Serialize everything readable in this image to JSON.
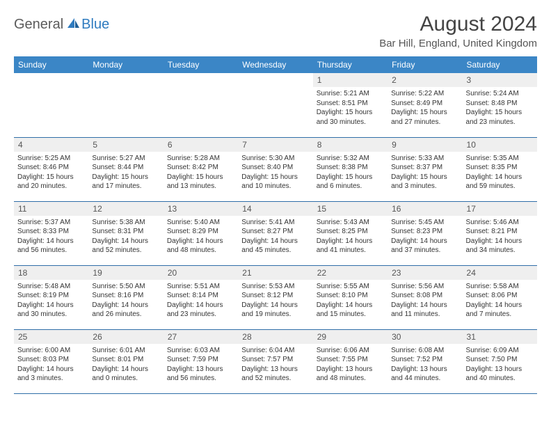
{
  "brand": {
    "word1": "General",
    "word2": "Blue"
  },
  "title": "August 2024",
  "location": "Bar Hill, England, United Kingdom",
  "colors": {
    "header_bg": "#3b86c6",
    "header_text": "#ffffff",
    "daynum_bg": "#efefef",
    "row_border": "#2f6ea8",
    "logo_gray": "#5b5b5b",
    "logo_blue": "#2f7bbf"
  },
  "weekdays": [
    "Sunday",
    "Monday",
    "Tuesday",
    "Wednesday",
    "Thursday",
    "Friday",
    "Saturday"
  ],
  "weeks": [
    [
      null,
      null,
      null,
      null,
      {
        "n": "1",
        "sr": "5:21 AM",
        "ss": "8:51 PM",
        "dl": "15 hours and 30 minutes."
      },
      {
        "n": "2",
        "sr": "5:22 AM",
        "ss": "8:49 PM",
        "dl": "15 hours and 27 minutes."
      },
      {
        "n": "3",
        "sr": "5:24 AM",
        "ss": "8:48 PM",
        "dl": "15 hours and 23 minutes."
      }
    ],
    [
      {
        "n": "4",
        "sr": "5:25 AM",
        "ss": "8:46 PM",
        "dl": "15 hours and 20 minutes."
      },
      {
        "n": "5",
        "sr": "5:27 AM",
        "ss": "8:44 PM",
        "dl": "15 hours and 17 minutes."
      },
      {
        "n": "6",
        "sr": "5:28 AM",
        "ss": "8:42 PM",
        "dl": "15 hours and 13 minutes."
      },
      {
        "n": "7",
        "sr": "5:30 AM",
        "ss": "8:40 PM",
        "dl": "15 hours and 10 minutes."
      },
      {
        "n": "8",
        "sr": "5:32 AM",
        "ss": "8:38 PM",
        "dl": "15 hours and 6 minutes."
      },
      {
        "n": "9",
        "sr": "5:33 AM",
        "ss": "8:37 PM",
        "dl": "15 hours and 3 minutes."
      },
      {
        "n": "10",
        "sr": "5:35 AM",
        "ss": "8:35 PM",
        "dl": "14 hours and 59 minutes."
      }
    ],
    [
      {
        "n": "11",
        "sr": "5:37 AM",
        "ss": "8:33 PM",
        "dl": "14 hours and 56 minutes."
      },
      {
        "n": "12",
        "sr": "5:38 AM",
        "ss": "8:31 PM",
        "dl": "14 hours and 52 minutes."
      },
      {
        "n": "13",
        "sr": "5:40 AM",
        "ss": "8:29 PM",
        "dl": "14 hours and 48 minutes."
      },
      {
        "n": "14",
        "sr": "5:41 AM",
        "ss": "8:27 PM",
        "dl": "14 hours and 45 minutes."
      },
      {
        "n": "15",
        "sr": "5:43 AM",
        "ss": "8:25 PM",
        "dl": "14 hours and 41 minutes."
      },
      {
        "n": "16",
        "sr": "5:45 AM",
        "ss": "8:23 PM",
        "dl": "14 hours and 37 minutes."
      },
      {
        "n": "17",
        "sr": "5:46 AM",
        "ss": "8:21 PM",
        "dl": "14 hours and 34 minutes."
      }
    ],
    [
      {
        "n": "18",
        "sr": "5:48 AM",
        "ss": "8:19 PM",
        "dl": "14 hours and 30 minutes."
      },
      {
        "n": "19",
        "sr": "5:50 AM",
        "ss": "8:16 PM",
        "dl": "14 hours and 26 minutes."
      },
      {
        "n": "20",
        "sr": "5:51 AM",
        "ss": "8:14 PM",
        "dl": "14 hours and 23 minutes."
      },
      {
        "n": "21",
        "sr": "5:53 AM",
        "ss": "8:12 PM",
        "dl": "14 hours and 19 minutes."
      },
      {
        "n": "22",
        "sr": "5:55 AM",
        "ss": "8:10 PM",
        "dl": "14 hours and 15 minutes."
      },
      {
        "n": "23",
        "sr": "5:56 AM",
        "ss": "8:08 PM",
        "dl": "14 hours and 11 minutes."
      },
      {
        "n": "24",
        "sr": "5:58 AM",
        "ss": "8:06 PM",
        "dl": "14 hours and 7 minutes."
      }
    ],
    [
      {
        "n": "25",
        "sr": "6:00 AM",
        "ss": "8:03 PM",
        "dl": "14 hours and 3 minutes."
      },
      {
        "n": "26",
        "sr": "6:01 AM",
        "ss": "8:01 PM",
        "dl": "14 hours and 0 minutes."
      },
      {
        "n": "27",
        "sr": "6:03 AM",
        "ss": "7:59 PM",
        "dl": "13 hours and 56 minutes."
      },
      {
        "n": "28",
        "sr": "6:04 AM",
        "ss": "7:57 PM",
        "dl": "13 hours and 52 minutes."
      },
      {
        "n": "29",
        "sr": "6:06 AM",
        "ss": "7:55 PM",
        "dl": "13 hours and 48 minutes."
      },
      {
        "n": "30",
        "sr": "6:08 AM",
        "ss": "7:52 PM",
        "dl": "13 hours and 44 minutes."
      },
      {
        "n": "31",
        "sr": "6:09 AM",
        "ss": "7:50 PM",
        "dl": "13 hours and 40 minutes."
      }
    ]
  ],
  "labels": {
    "sunrise": "Sunrise:",
    "sunset": "Sunset:",
    "daylight": "Daylight:"
  }
}
